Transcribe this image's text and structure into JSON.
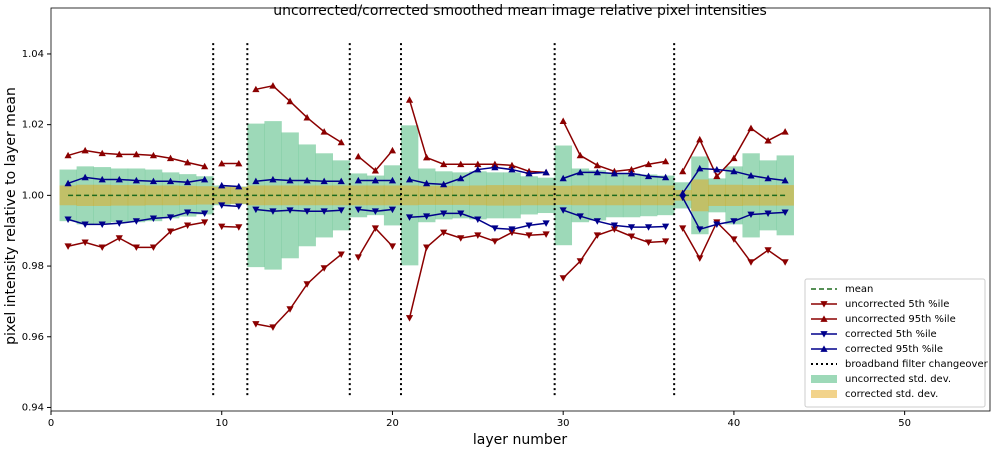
{
  "chart_data": {
    "type": "line",
    "title": "uncorrected/corrected smoothed mean image relative pixel intensities",
    "xlabel": "layer number",
    "ylabel": "pixel intensity relative to layer mean",
    "xlim": [
      0,
      55
    ],
    "ylim": [
      0.939,
      1.053
    ],
    "xticks": [
      0,
      10,
      20,
      30,
      40,
      50
    ],
    "yticks": [
      0.94,
      0.96,
      0.98,
      {
        "value": 1,
        "label": "1.00"
      },
      1.02,
      1.04
    ],
    "legend": "lower right",
    "x": [
      1,
      2,
      3,
      4,
      5,
      6,
      7,
      8,
      9,
      10,
      11,
      12,
      13,
      14,
      15,
      16,
      17,
      18,
      19,
      20,
      21,
      22,
      23,
      24,
      25,
      26,
      27,
      28,
      29,
      30,
      31,
      32,
      33,
      34,
      35,
      36,
      37,
      38,
      39,
      40,
      41,
      42,
      43
    ],
    "mean": {
      "name": "mean",
      "value": 1,
      "color": "#1e6b1e"
    },
    "series": [
      {
        "name": "uncorrected 5th %ile",
        "color": "#8b0000",
        "marker": "down",
        "values": [
          0.9856,
          0.9867,
          0.9853,
          0.9879,
          0.9853,
          0.9853,
          0.9898,
          0.9915,
          0.9924,
          0.9912,
          0.991,
          0.9636,
          0.9627,
          0.9678,
          0.9749,
          0.9794,
          0.9833,
          0.9825,
          0.9907,
          0.9856,
          0.9653,
          0.9853,
          0.9895,
          0.9879,
          0.9887,
          0.987,
          0.9895,
          0.9887,
          0.989,
          0.9766,
          0.9814,
          0.9887,
          0.9904,
          0.9884,
          0.9867,
          0.987,
          0.9907,
          0.9822,
          0.9924,
          0.9876,
          0.9811,
          0.9845,
          0.9811
        ]
      },
      {
        "name": "uncorrected 95th %ile",
        "color": "#8b0000",
        "marker": "up",
        "values": [
          1.0113,
          1.0127,
          1.0119,
          1.0116,
          1.0116,
          1.0113,
          1.0105,
          1.0093,
          1.0082,
          1.009,
          1.009,
          1.03,
          1.031,
          1.0266,
          1.022,
          1.018,
          1.015,
          1.011,
          1.007,
          1.0127,
          1.027,
          1.0107,
          1.0088,
          1.0088,
          1.0088,
          1.0088,
          1.0085,
          1.0068,
          1.0065,
          1.021,
          1.0113,
          1.0085,
          1.0068,
          1.0073,
          1.0088,
          1.0096,
          1.0068,
          1.0158,
          1.0054,
          1.0105,
          1.019,
          1.0155,
          1.018
        ]
      },
      {
        "name": "corrected 5th %ile",
        "color": "#00008b",
        "marker": "down",
        "values": [
          0.9932,
          0.9918,
          0.9918,
          0.9921,
          0.9927,
          0.9935,
          0.9938,
          0.9952,
          0.9949,
          0.9972,
          0.9969,
          0.996,
          0.9955,
          0.9958,
          0.9955,
          0.9955,
          0.9958,
          0.996,
          0.9955,
          0.996,
          0.9938,
          0.9941,
          0.9949,
          0.9949,
          0.9932,
          0.9907,
          0.9904,
          0.9915,
          0.9921,
          0.9958,
          0.9941,
          0.9927,
          0.9915,
          0.991,
          0.991,
          0.9912,
          0.9994,
          0.9904,
          0.9918,
          0.9927,
          0.9946,
          0.9949,
          0.9952
        ]
      },
      {
        "name": "corrected 95th %ile",
        "color": "#00008b",
        "marker": "up",
        "values": [
          1.0034,
          1.0051,
          1.0045,
          1.0045,
          1.0042,
          1.004,
          1.004,
          1.0037,
          1.0045,
          1.0028,
          1.0025,
          1.004,
          1.0045,
          1.0042,
          1.0042,
          1.004,
          1.004,
          1.0042,
          1.0042,
          1.0042,
          1.0045,
          1.0034,
          1.0031,
          1.0048,
          1.0073,
          1.0079,
          1.0073,
          1.0062,
          1.0065,
          1.0048,
          1.0065,
          1.0065,
          1.0062,
          1.0062,
          1.0054,
          1.0051,
          1.0006,
          1.0076,
          1.0073,
          1.0068,
          1.0056,
          1.0048,
          1.0042
        ]
      }
    ],
    "changeover": {
      "name": "broadband filter changeover",
      "color": "#000000",
      "x": [
        9.5,
        11.5,
        17.5,
        20.5,
        29.5,
        36.5
      ],
      "span": [
        0.9435,
        1.0432
      ]
    },
    "bands": [
      {
        "name": "uncorrected std. dev.",
        "color": "#3cb371",
        "values": [
          0.0073,
          0.0082,
          0.008,
          0.0076,
          0.0076,
          0.0073,
          0.0065,
          0.006,
          0.0054,
          0.0028,
          0.0025,
          0.0203,
          0.021,
          0.0178,
          0.0144,
          0.0119,
          0.0099,
          0.0062,
          0.0056,
          0.0085,
          0.0198,
          0.0076,
          0.0068,
          0.0065,
          0.0068,
          0.0065,
          0.0065,
          0.0054,
          0.005,
          0.0141,
          0.0076,
          0.0071,
          0.0062,
          0.0062,
          0.0059,
          0.0056,
          0.0037,
          0.011,
          0.0048,
          0.0082,
          0.0119,
          0.0099,
          0.0113
        ]
      },
      {
        "name": "corrected std. dev.",
        "color": "#e6a817",
        "values": [
          0.0028,
          0.003,
          0.003,
          0.0029,
          0.0029,
          0.0028,
          0.0028,
          0.0027,
          0.0026,
          0.0024,
          0.0024,
          0.0028,
          0.0028,
          0.0028,
          0.0028,
          0.0028,
          0.0028,
          0.0028,
          0.0028,
          0.0028,
          0.0028,
          0.0027,
          0.0027,
          0.0027,
          0.0028,
          0.0029,
          0.0029,
          0.0028,
          0.0028,
          0.0027,
          0.0028,
          0.0028,
          0.0028,
          0.0028,
          0.0028,
          0.0028,
          0.0015,
          0.0045,
          0.003,
          0.003,
          0.0029,
          0.0029,
          0.0029
        ]
      }
    ]
  }
}
